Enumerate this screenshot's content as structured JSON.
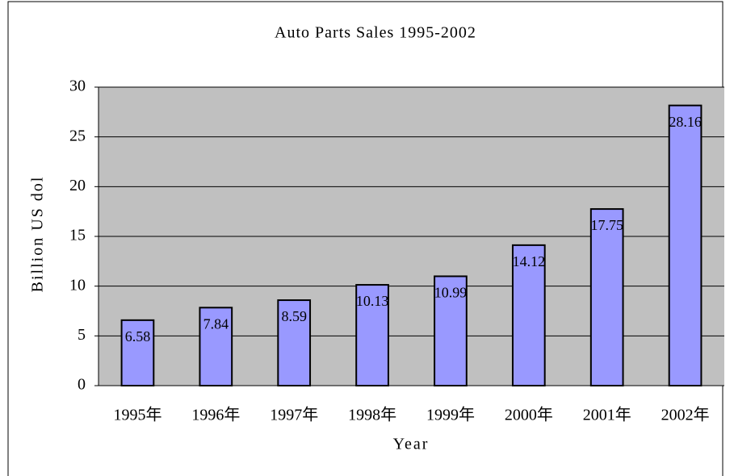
{
  "chart_data": {
    "type": "bar",
    "title": "Auto Parts Sales 1995-2002",
    "y_label": "Billion US dol",
    "x_label": "Year",
    "categories": [
      "1995年",
      "1996年",
      "1997年",
      "1998年",
      "1999年",
      "2000年",
      "2001年",
      "2002年"
    ],
    "values": [
      6.58,
      7.84,
      8.59,
      10.13,
      10.99,
      14.12,
      17.75,
      28.16
    ],
    "color": "#9999ff",
    "plot_background": "#c0c0c0",
    "ylim": [
      0,
      30
    ],
    "yticks": [
      0,
      5,
      10,
      15,
      20,
      25,
      30
    ],
    "grid": true
  }
}
